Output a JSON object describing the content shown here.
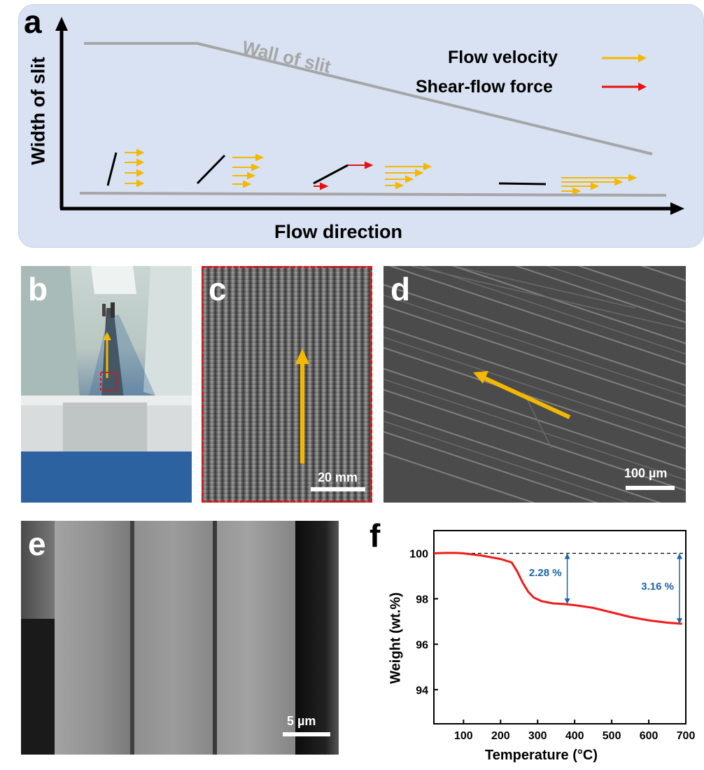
{
  "panels": {
    "a": {
      "letter": "a",
      "ylabel": "Width of slit",
      "xlabel": "Flow direction",
      "wall_label": "Wall of slit",
      "legend": [
        {
          "label": "Flow velocity",
          "color": "#f5b800"
        },
        {
          "label": "Shear-flow force",
          "color": "#e81010"
        }
      ]
    },
    "b": {
      "letter": "b"
    },
    "c": {
      "letter": "c",
      "scale": "20 mm"
    },
    "d": {
      "letter": "d",
      "scale": "100 µm"
    },
    "e": {
      "letter": "e",
      "scale": "5 µm"
    },
    "f": {
      "letter": "f"
    }
  },
  "chart_data": {
    "type": "line",
    "xlabel": "Temperature (°C)",
    "ylabel": "Weight (wt.%)",
    "xlim": [
      20,
      700
    ],
    "ylim": [
      92.5,
      101
    ],
    "xticks": [
      100,
      200,
      300,
      400,
      500,
      600,
      700
    ],
    "yticks": [
      94,
      96,
      98,
      100
    ],
    "reference_line": 100,
    "series": [
      {
        "color": "#ee1c1c",
        "x": [
          20,
          50,
          80,
          100,
          150,
          200,
          230,
          245,
          260,
          275,
          290,
          310,
          340,
          370,
          400,
          450,
          500,
          550,
          600,
          650,
          690
        ],
        "y": [
          100.0,
          100.02,
          100.02,
          100.0,
          99.9,
          99.75,
          99.6,
          99.2,
          98.7,
          98.3,
          98.05,
          97.9,
          97.8,
          97.77,
          97.72,
          97.6,
          97.4,
          97.2,
          97.05,
          96.95,
          96.9
        ]
      }
    ],
    "annotations": [
      {
        "text": "2.28 %",
        "color": "#1a64a8"
      },
      {
        "text": "3.16 %",
        "color": "#1a64a8"
      }
    ]
  }
}
